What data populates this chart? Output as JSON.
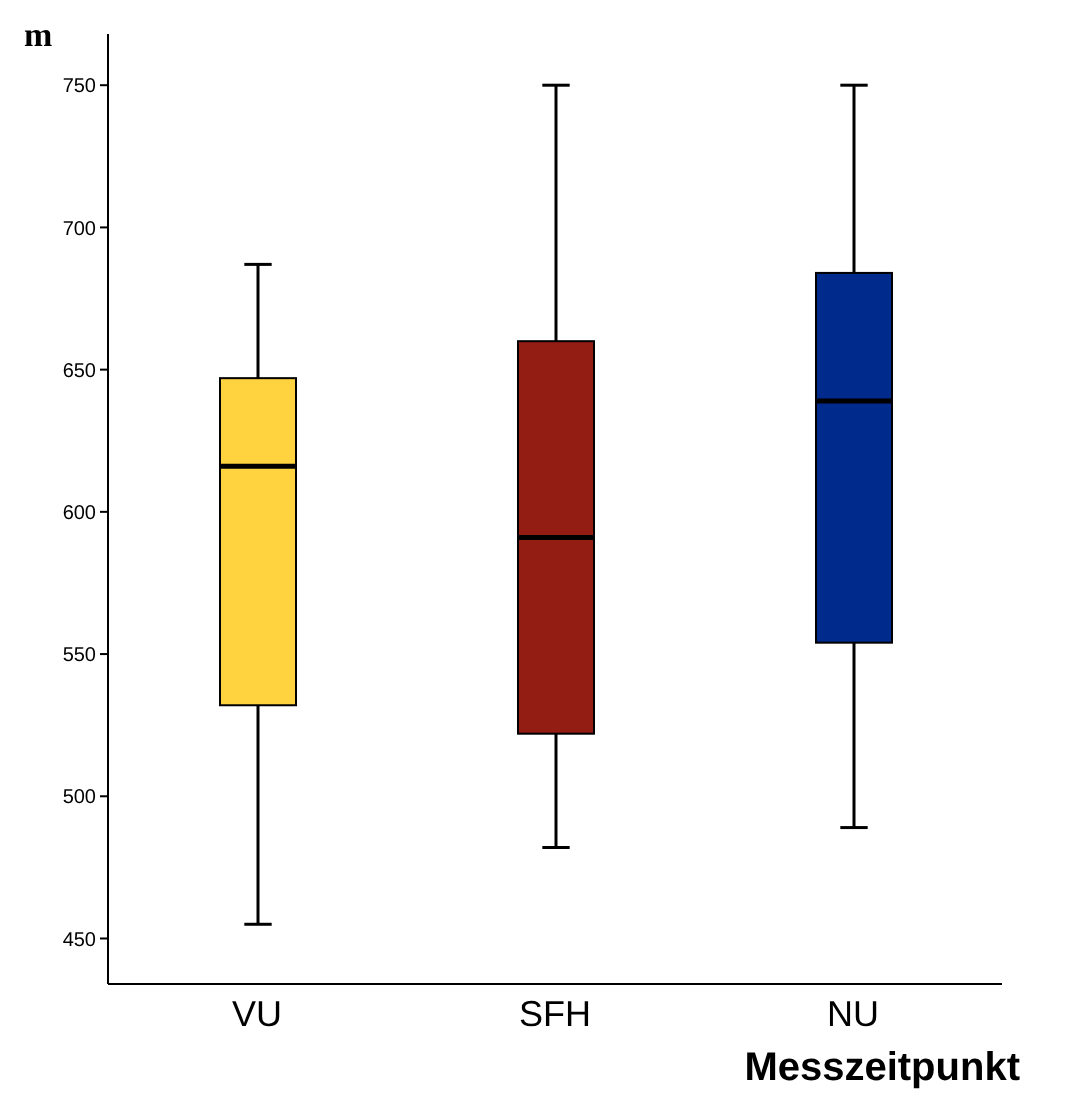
{
  "chart_data": {
    "type": "box",
    "ylabel": "m",
    "xlabel": "Messzeitpunkt",
    "categories": [
      "VU",
      "SFH",
      "NU"
    ],
    "colors": [
      "#ffd23f",
      "#931c13",
      "#002b8c"
    ],
    "boxes": [
      {
        "low": 455,
        "q1": 532,
        "median": 616,
        "q3": 647,
        "high": 687
      },
      {
        "low": 482,
        "q1": 522,
        "median": 591,
        "q3": 660,
        "high": 750
      },
      {
        "low": 489,
        "q1": 554,
        "median": 639,
        "q3": 684,
        "high": 750
      }
    ],
    "ylim": [
      434,
      768
    ],
    "yticks": [
      450,
      500,
      550,
      600,
      650,
      700,
      750
    ],
    "grid": false
  }
}
